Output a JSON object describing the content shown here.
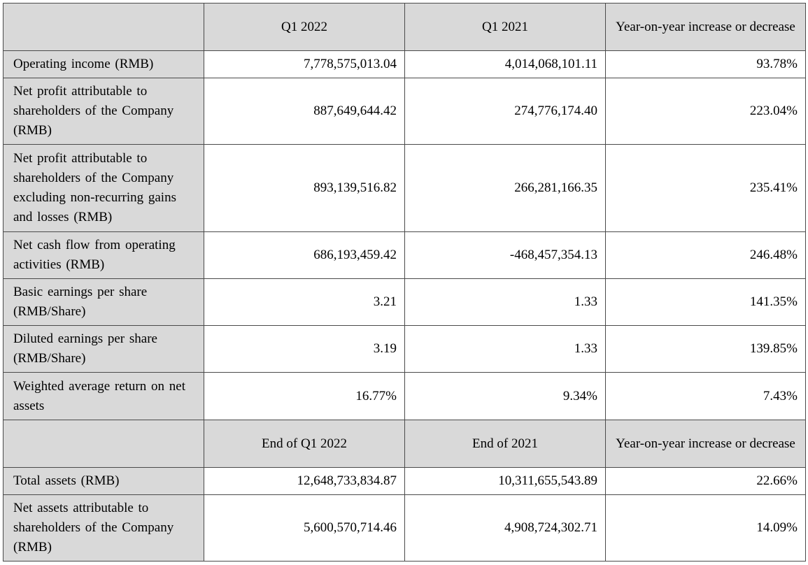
{
  "header1": {
    "col1": "Q1 2022",
    "col2": "Q1 2021",
    "col3": "Year-on-year increase or decrease"
  },
  "rows1": [
    {
      "label": "Operating income (RMB)",
      "v1": "7,778,575,013.04",
      "v2": "4,014,068,101.11",
      "v3": "93.78%"
    },
    {
      "label": "Net profit attributable to shareholders of the Company (RMB)",
      "v1": "887,649,644.42",
      "v2": "274,776,174.40",
      "v3": "223.04%"
    },
    {
      "label": "Net profit attributable to shareholders of the Company excluding non-recurring gains and losses (RMB)",
      "v1": "893,139,516.82",
      "v2": "266,281,166.35",
      "v3": "235.41%"
    },
    {
      "label": "Net cash flow from operating activities (RMB)",
      "v1": "686,193,459.42",
      "v2": "-468,457,354.13",
      "v3": "246.48%"
    },
    {
      "label": "Basic earnings per share (RMB/Share)",
      "v1": "3.21",
      "v2": "1.33",
      "v3": "141.35%"
    },
    {
      "label": "Diluted earnings per share (RMB/Share)",
      "v1": "3.19",
      "v2": "1.33",
      "v3": "139.85%"
    },
    {
      "label": "Weighted average return on net assets",
      "v1": "16.77%",
      "v2": "9.34%",
      "v3": "7.43%"
    }
  ],
  "header2": {
    "col1": "End of Q1 2022",
    "col2": "End of 2021",
    "col3": "Year-on-year increase or decrease"
  },
  "rows2": [
    {
      "label": "Total assets (RMB)",
      "v1": "12,648,733,834.87",
      "v2": "10,311,655,543.89",
      "v3": "22.66%"
    },
    {
      "label": "Net assets attributable to shareholders of the Company (RMB)",
      "v1": "5,600,570,714.46",
      "v2": "4,908,724,302.71",
      "v3": "14.09%"
    }
  ]
}
